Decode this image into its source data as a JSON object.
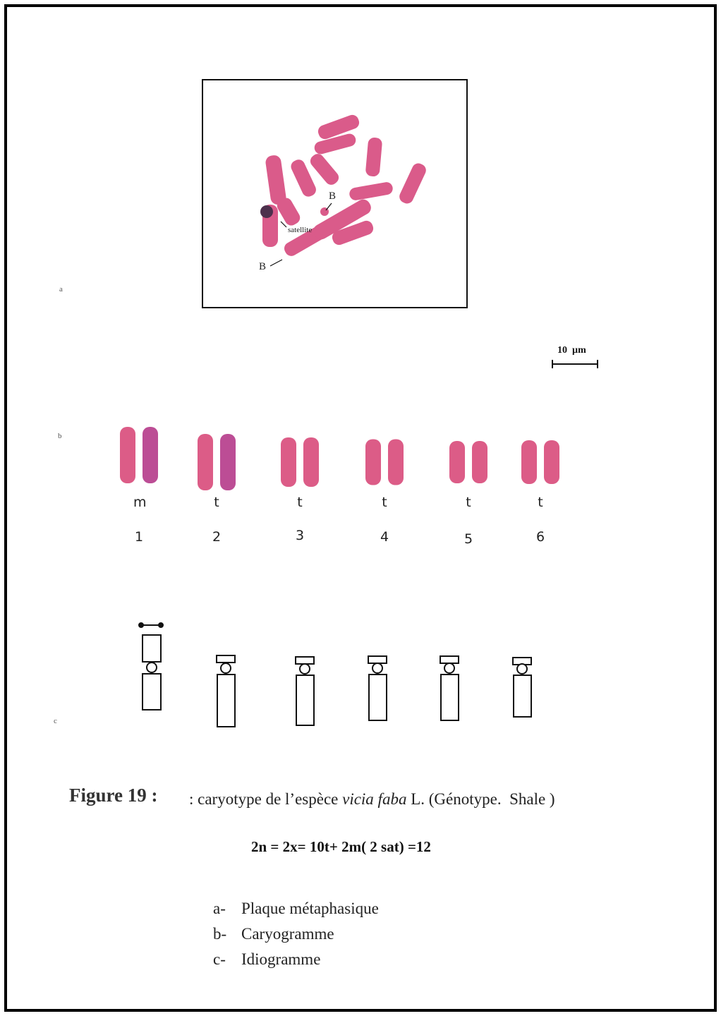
{
  "panel_a": {
    "label": "a",
    "annotations": [
      "B",
      "satellite",
      "B"
    ]
  },
  "scale_bar": "10  µm",
  "panel_b": {
    "label": "b",
    "pairs": [
      {
        "type": "m",
        "number": "1"
      },
      {
        "type": "t",
        "number": "2"
      },
      {
        "type": "t",
        "number": "3"
      },
      {
        "type": "t",
        "number": "4"
      },
      {
        "type": "t",
        "number": "5"
      },
      {
        "type": "t",
        "number": "6"
      }
    ]
  },
  "panel_c": {
    "label": "c"
  },
  "caption": {
    "figure": "Figure 19 :",
    "text_before": ": caryotype de l’espèce ",
    "species": "vicia faba",
    "text_after": " L. (Génotype.  Shale )"
  },
  "formula": "2n = 2x= 10t+ 2m( 2 sat) =12",
  "legend": [
    {
      "letter": "a-",
      "text": "Plaque métaphasique"
    },
    {
      "letter": "b-",
      "text": "Caryogramme"
    },
    {
      "letter": "c-",
      "text": "Idiogramme"
    }
  ]
}
